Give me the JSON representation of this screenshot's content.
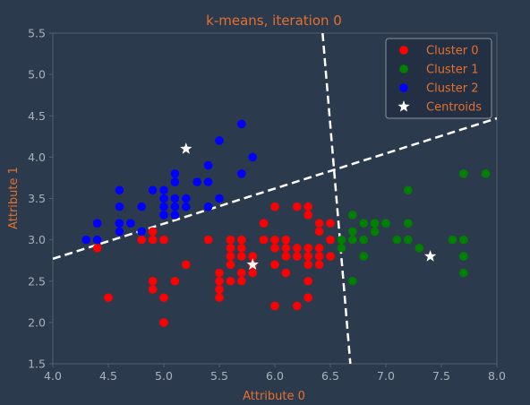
{
  "chart_data": {
    "type": "scatter",
    "title": "k-means, iteration 0",
    "xlabel": "Attribute 0",
    "ylabel": "Attribute 1",
    "xlim": [
      4.0,
      8.0
    ],
    "ylim": [
      1.5,
      5.5
    ],
    "xticks": [
      "4.0",
      "4.5",
      "5.0",
      "5.5",
      "6.0",
      "6.5",
      "7.0",
      "7.5",
      "8.0"
    ],
    "yticks": [
      "1.5",
      "2.0",
      "2.5",
      "3.0",
      "3.5",
      "4.0",
      "4.5",
      "5.0",
      "5.5"
    ],
    "grid": false,
    "legend_position": "top-right",
    "series": [
      {
        "name": "Cluster 0",
        "color": "#ff0000",
        "points": [
          [
            4.4,
            2.9
          ],
          [
            4.5,
            2.3
          ],
          [
            4.8,
            3.0
          ],
          [
            4.9,
            2.4
          ],
          [
            4.9,
            2.5
          ],
          [
            4.9,
            3.0
          ],
          [
            4.9,
            3.1
          ],
          [
            5.0,
            2.0
          ],
          [
            5.0,
            2.3
          ],
          [
            5.0,
            3.0
          ],
          [
            5.1,
            2.5
          ],
          [
            5.2,
            2.7
          ],
          [
            5.4,
            3.0
          ],
          [
            5.5,
            2.3
          ],
          [
            5.5,
            2.4
          ],
          [
            5.5,
            2.5
          ],
          [
            5.5,
            2.6
          ],
          [
            5.6,
            2.5
          ],
          [
            5.6,
            2.7
          ],
          [
            5.6,
            2.8
          ],
          [
            5.6,
            2.9
          ],
          [
            5.6,
            3.0
          ],
          [
            5.7,
            2.5
          ],
          [
            5.7,
            2.6
          ],
          [
            5.7,
            2.8
          ],
          [
            5.7,
            2.9
          ],
          [
            5.7,
            3.0
          ],
          [
            5.8,
            2.6
          ],
          [
            5.8,
            2.7
          ],
          [
            5.8,
            2.8
          ],
          [
            5.9,
            3.0
          ],
          [
            5.9,
            3.2
          ],
          [
            6.0,
            2.2
          ],
          [
            6.0,
            2.7
          ],
          [
            6.0,
            2.9
          ],
          [
            6.0,
            3.0
          ],
          [
            6.0,
            3.4
          ],
          [
            6.1,
            2.6
          ],
          [
            6.1,
            2.8
          ],
          [
            6.1,
            2.9
          ],
          [
            6.1,
            3.0
          ],
          [
            6.2,
            2.2
          ],
          [
            6.2,
            2.8
          ],
          [
            6.2,
            2.9
          ],
          [
            6.2,
            3.4
          ],
          [
            6.3,
            2.3
          ],
          [
            6.3,
            2.5
          ],
          [
            6.3,
            2.7
          ],
          [
            6.3,
            2.8
          ],
          [
            6.3,
            2.9
          ],
          [
            6.3,
            3.3
          ],
          [
            6.3,
            3.4
          ],
          [
            6.4,
            2.7
          ],
          [
            6.4,
            2.8
          ],
          [
            6.4,
            2.9
          ],
          [
            6.4,
            3.1
          ],
          [
            6.4,
            3.2
          ],
          [
            6.5,
            2.8
          ],
          [
            6.5,
            3.0
          ],
          [
            6.5,
            3.2
          ]
        ]
      },
      {
        "name": "Cluster 1",
        "color": "#008000",
        "points": [
          [
            6.6,
            2.9
          ],
          [
            6.6,
            3.0
          ],
          [
            6.7,
            2.5
          ],
          [
            6.7,
            3.0
          ],
          [
            6.7,
            3.1
          ],
          [
            6.7,
            3.3
          ],
          [
            6.8,
            2.8
          ],
          [
            6.8,
            3.0
          ],
          [
            6.8,
            3.2
          ],
          [
            6.9,
            3.1
          ],
          [
            6.9,
            3.2
          ],
          [
            7.0,
            3.2
          ],
          [
            7.1,
            3.0
          ],
          [
            7.2,
            3.0
          ],
          [
            7.2,
            3.2
          ],
          [
            7.2,
            3.6
          ],
          [
            7.3,
            2.9
          ],
          [
            7.6,
            3.0
          ],
          [
            7.7,
            2.6
          ],
          [
            7.7,
            2.8
          ],
          [
            7.7,
            3.0
          ],
          [
            7.7,
            3.8
          ],
          [
            7.9,
            3.8
          ]
        ]
      },
      {
        "name": "Cluster 2",
        "color": "#0000ff",
        "points": [
          [
            4.3,
            3.0
          ],
          [
            4.4,
            3.0
          ],
          [
            4.4,
            3.2
          ],
          [
            4.6,
            3.1
          ],
          [
            4.6,
            3.2
          ],
          [
            4.6,
            3.4
          ],
          [
            4.6,
            3.6
          ],
          [
            4.7,
            3.2
          ],
          [
            4.8,
            3.1
          ],
          [
            4.8,
            3.4
          ],
          [
            4.9,
            3.6
          ],
          [
            5.0,
            3.3
          ],
          [
            5.0,
            3.4
          ],
          [
            5.0,
            3.5
          ],
          [
            5.0,
            3.6
          ],
          [
            5.1,
            3.3
          ],
          [
            5.1,
            3.4
          ],
          [
            5.1,
            3.5
          ],
          [
            5.1,
            3.7
          ],
          [
            5.1,
            3.8
          ],
          [
            5.2,
            3.4
          ],
          [
            5.2,
            3.5
          ],
          [
            5.3,
            3.7
          ],
          [
            5.4,
            3.4
          ],
          [
            5.4,
            3.7
          ],
          [
            5.4,
            3.9
          ],
          [
            5.5,
            3.5
          ],
          [
            5.5,
            4.2
          ],
          [
            5.7,
            3.8
          ],
          [
            5.7,
            4.4
          ],
          [
            5.8,
            4.0
          ]
        ]
      },
      {
        "name": "Centroids",
        "color": "#ffffff",
        "marker": "star",
        "points": [
          [
            5.2,
            4.1
          ],
          [
            5.8,
            2.7
          ],
          [
            7.4,
            2.8
          ]
        ]
      }
    ],
    "boundaries": [
      {
        "style": "dashed",
        "color": "#ffffff",
        "from": [
          4.0,
          2.77
        ],
        "to": [
          8.0,
          4.47
        ]
      },
      {
        "style": "dashed",
        "color": "#ffffff",
        "from": [
          6.43,
          5.5
        ],
        "to": [
          6.68,
          1.5
        ]
      }
    ]
  },
  "colors": {
    "background": "#2b3a4d",
    "accent_text": "#e3702f",
    "tick_text": "#a9b2bc",
    "axis_line": "#546070"
  }
}
